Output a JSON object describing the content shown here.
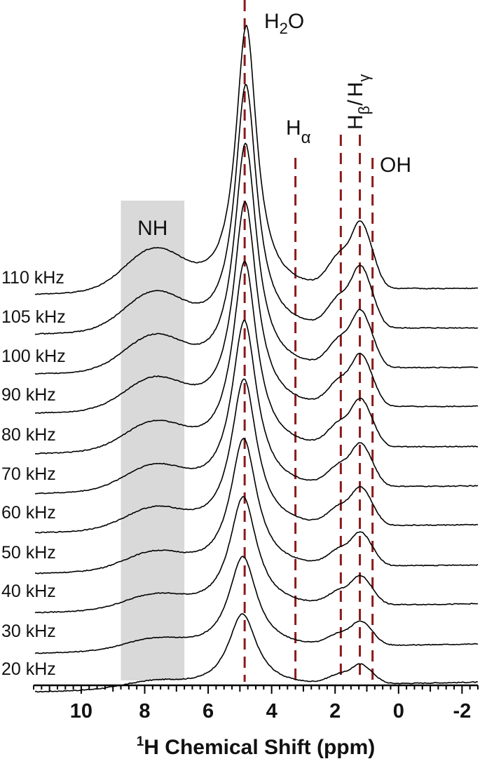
{
  "chart_data": {
    "type": "line",
    "xlabel": "¹H Chemical Shift (ppm)",
    "xlabel_parts": {
      "sup": "1",
      "text": "H Chemical Shift (ppm)"
    },
    "x_reversed": true,
    "xlim": [
      11.5,
      -2.5
    ],
    "xticks": [
      10,
      8,
      6,
      4,
      2,
      0,
      -2
    ],
    "xtick_labels": [
      "10",
      "8",
      "6",
      "4",
      "2",
      "0",
      "-2"
    ],
    "y_axis_shown": false,
    "grid": false,
    "stacked": true,
    "series": [
      {
        "name": "20 kHz",
        "peak_height": 0.23,
        "broad": 2.0
      },
      {
        "name": "30 kHz",
        "peak_height": 0.3,
        "broad": 1.7
      },
      {
        "name": "40 kHz",
        "peak_height": 0.38,
        "broad": 1.5
      },
      {
        "name": "50 kHz",
        "peak_height": 0.45,
        "broad": 1.4
      },
      {
        "name": "60 kHz",
        "peak_height": 0.53,
        "broad": 1.3
      },
      {
        "name": "70 kHz",
        "peak_height": 0.61,
        "broad": 1.2
      },
      {
        "name": "80 kHz",
        "peak_height": 0.69,
        "broad": 1.15
      },
      {
        "name": "90 kHz",
        "peak_height": 0.77,
        "broad": 1.1
      },
      {
        "name": "100 kHz",
        "peak_height": 0.84,
        "broad": 1.05
      },
      {
        "name": "105 kHz",
        "peak_height": 0.92,
        "broad": 1.02
      },
      {
        "name": "110 kHz",
        "peak_height": 1.0,
        "broad": 1.0
      }
    ],
    "peaks": [
      {
        "name": "H2O",
        "base": "H",
        "sub": "2",
        "tail": "O",
        "ppm": 4.85
      },
      {
        "name": "Hα",
        "base": "H",
        "sub": "α",
        "ppm": 3.25
      },
      {
        "name": "Hβ/Hγ",
        "base": "H",
        "sub": "β",
        "mid": "/",
        "base2": "H",
        "sub2": "γ",
        "ppm_beta": 1.82,
        "ppm_gamma": 1.22
      },
      {
        "name": "OH",
        "text": "OH",
        "ppm": 0.82
      }
    ],
    "highlight_region": {
      "label": "NH",
      "ppm_range": [
        8.75,
        6.75
      ],
      "color": "#d9d9d9"
    }
  }
}
